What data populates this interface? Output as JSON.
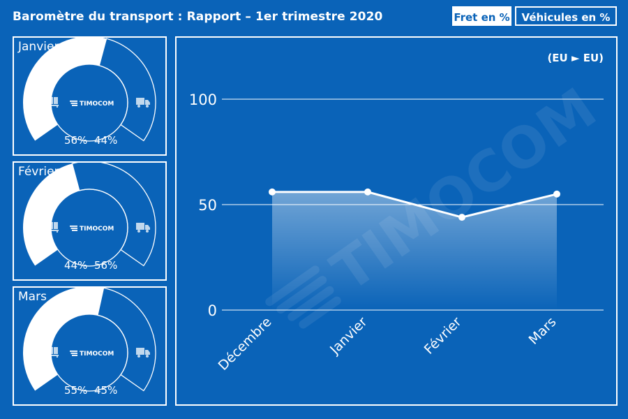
{
  "header": {
    "title": "Baromètre du transport : Rapport – 1er trimestre 2020",
    "tabs": [
      {
        "label": "Fret en %",
        "active": true
      },
      {
        "label": "Véhicules en %",
        "active": false
      }
    ]
  },
  "gauges": [
    {
      "month": "Janvier",
      "left_label": "56%",
      "right_label": "44%",
      "fret_pct": 56,
      "vehicle_pct": 44,
      "logo_text": "TIMOCOM"
    },
    {
      "month": "Février",
      "left_label": "44%",
      "right_label": "56%",
      "fret_pct": 44,
      "vehicle_pct": 56,
      "logo_text": "TIMOCOM"
    },
    {
      "month": "Mars",
      "left_label": "55%",
      "right_label": "45%",
      "fret_pct": 55,
      "vehicle_pct": 45,
      "logo_text": "TIMOCOM"
    }
  ],
  "icons": {
    "left": "pallet-icon",
    "right": "truck-icon"
  },
  "colors": {
    "background": "#0a63b8",
    "foreground": "#ffffff"
  },
  "watermark": "TIMOCOM",
  "chart_data": {
    "type": "line",
    "title": "",
    "region_label": "(EU ► EU)",
    "categories": [
      "Décembre",
      "Janvier",
      "Février",
      "Mars"
    ],
    "series": [
      {
        "values": [
          56,
          56,
          44,
          55
        ]
      }
    ],
    "ylim": [
      0,
      100
    ],
    "yticks": [
      0,
      50,
      100
    ],
    "grid": true,
    "area_fill": true
  }
}
